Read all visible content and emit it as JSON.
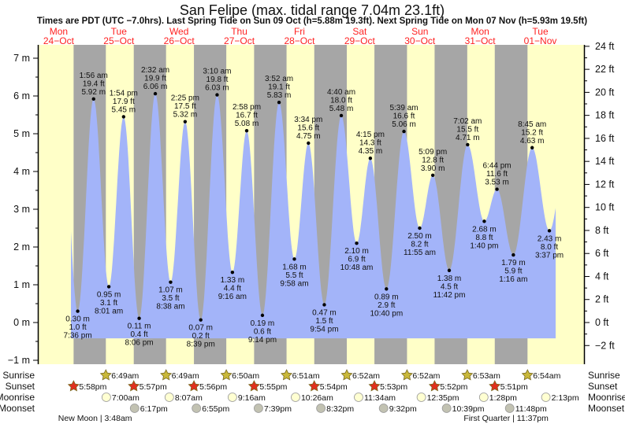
{
  "title": "San Felipe (max. tidal range 7.04m 23.1ft)",
  "subtitle": "Times are PDT (UTC −7.0hrs). Last Spring Tide on Sun 09 Oct (h=5.88m 19.3ft). Next Spring Tide on Mon 07 Nov (h=5.93m 19.5ft)",
  "colors": {
    "day": "#ffffc8",
    "night": "#a6a6a6",
    "water": "#a3b4f9",
    "day_label": "#ff2a2a",
    "sunrise": "#c9b83a",
    "sunset": "#e0301e",
    "moonrise": "#ffffd2",
    "moonset": "#c2c2b2"
  },
  "chart_data": {
    "type": "area",
    "title": "San Felipe (max. tidal range 7.04m 23.1ft)",
    "days": [
      {
        "dow": "Mon",
        "date": "24−Oct"
      },
      {
        "dow": "Tue",
        "date": "25−Oct"
      },
      {
        "dow": "Wed",
        "date": "26−Oct"
      },
      {
        "dow": "Thu",
        "date": "27−Oct"
      },
      {
        "dow": "Fri",
        "date": "28−Oct"
      },
      {
        "dow": "Sat",
        "date": "29−Oct"
      },
      {
        "dow": "Sun",
        "date": "30−Oct"
      },
      {
        "dow": "Mon",
        "date": "31−Oct"
      },
      {
        "dow": "Tue",
        "date": "01−Nov"
      }
    ],
    "y_left": {
      "unit": "m",
      "ticks": [
        "7 m",
        "6 m",
        "5 m",
        "4 m",
        "3 m",
        "2 m",
        "1 m",
        "0 m",
        "−1 m"
      ],
      "values": [
        7,
        6,
        5,
        4,
        3,
        2,
        1,
        0,
        -1
      ]
    },
    "y_right": {
      "unit": "ft",
      "ticks": [
        "24 ft",
        "22 ft",
        "20 ft",
        "18 ft",
        "16 ft",
        "14 ft",
        "12 ft",
        "10 ft",
        "8 ft",
        "6 ft",
        "4 ft",
        "2 ft",
        "0 ft",
        "−2 ft"
      ],
      "values": [
        24,
        22,
        20,
        18,
        16,
        14,
        12,
        10,
        8,
        6,
        4,
        2,
        0,
        -2
      ]
    },
    "tides": [
      {
        "day": 0,
        "type": "low",
        "time": "7:36 pm",
        "m": "0.30 m",
        "ft": "1.0 ft",
        "h": 0.3
      },
      {
        "day": 1,
        "type": "high",
        "time": "1:56 am",
        "m": "5.92 m",
        "ft": "19.4 ft",
        "h": 5.92
      },
      {
        "day": 1,
        "type": "low",
        "time": "8:01 am",
        "m": "0.95 m",
        "ft": "3.1 ft",
        "h": 0.95
      },
      {
        "day": 1,
        "type": "high",
        "time": "1:54 pm",
        "m": "5.45 m",
        "ft": "17.9 ft",
        "h": 5.45
      },
      {
        "day": 1,
        "type": "low",
        "time": "8:06 pm",
        "m": "0.11 m",
        "ft": "0.4 ft",
        "h": 0.11
      },
      {
        "day": 2,
        "type": "high",
        "time": "2:32 am",
        "m": "6.06 m",
        "ft": "19.9 ft",
        "h": 6.06
      },
      {
        "day": 2,
        "type": "low",
        "time": "8:38 am",
        "m": "1.07 m",
        "ft": "3.5 ft",
        "h": 1.07
      },
      {
        "day": 2,
        "type": "high",
        "time": "2:25 pm",
        "m": "5.32 m",
        "ft": "17.5 ft",
        "h": 5.32
      },
      {
        "day": 2,
        "type": "low",
        "time": "8:39 pm",
        "m": "0.07 m",
        "ft": "0.2 ft",
        "h": 0.07
      },
      {
        "day": 3,
        "type": "high",
        "time": "3:10 am",
        "m": "6.03 m",
        "ft": "19.8 ft",
        "h": 6.03
      },
      {
        "day": 3,
        "type": "low",
        "time": "9:16 am",
        "m": "1.33 m",
        "ft": "4.4 ft",
        "h": 1.33
      },
      {
        "day": 3,
        "type": "high",
        "time": "2:58 pm",
        "m": "5.08 m",
        "ft": "16.7 ft",
        "h": 5.08
      },
      {
        "day": 3,
        "type": "low",
        "time": "9:14 pm",
        "m": "0.19 m",
        "ft": "0.6 ft",
        "h": 0.19
      },
      {
        "day": 4,
        "type": "high",
        "time": "3:52 am",
        "m": "5.83 m",
        "ft": "19.1 ft",
        "h": 5.83
      },
      {
        "day": 4,
        "type": "low",
        "time": "9:58 am",
        "m": "1.68 m",
        "ft": "5.5 ft",
        "h": 1.68
      },
      {
        "day": 4,
        "type": "high",
        "time": "3:34 pm",
        "m": "4.75 m",
        "ft": "15.6 ft",
        "h": 4.75
      },
      {
        "day": 4,
        "type": "low",
        "time": "9:54 pm",
        "m": "0.47 m",
        "ft": "1.5 ft",
        "h": 0.47
      },
      {
        "day": 5,
        "type": "high",
        "time": "4:40 am",
        "m": "5.48 m",
        "ft": "18.0 ft",
        "h": 5.48
      },
      {
        "day": 5,
        "type": "low",
        "time": "10:48 am",
        "m": "2.10 m",
        "ft": "6.9 ft",
        "h": 2.1
      },
      {
        "day": 5,
        "type": "high",
        "time": "4:15 pm",
        "m": "4.35 m",
        "ft": "14.3 ft",
        "h": 4.35
      },
      {
        "day": 5,
        "type": "low",
        "time": "10:40 pm",
        "m": "0.89 m",
        "ft": "2.9 ft",
        "h": 0.89
      },
      {
        "day": 6,
        "type": "high",
        "time": "5:39 am",
        "m": "5.06 m",
        "ft": "16.6 ft",
        "h": 5.06
      },
      {
        "day": 6,
        "type": "low",
        "time": "11:55 am",
        "m": "2.50 m",
        "ft": "8.2 ft",
        "h": 2.5
      },
      {
        "day": 6,
        "type": "high",
        "time": "5:09 pm",
        "m": "3.90 m",
        "ft": "12.8 ft",
        "h": 3.9
      },
      {
        "day": 6,
        "type": "low",
        "time": "11:42 pm",
        "m": "1.38 m",
        "ft": "4.5 ft",
        "h": 1.38
      },
      {
        "day": 7,
        "type": "high",
        "time": "7:02 am",
        "m": "4.71 m",
        "ft": "15.5 ft",
        "h": 4.71
      },
      {
        "day": 7,
        "type": "low",
        "time": "1:40 pm",
        "m": "2.68 m",
        "ft": "8.8 ft",
        "h": 2.68
      },
      {
        "day": 7,
        "type": "high",
        "time": "6:44 pm",
        "m": "3.53 m",
        "ft": "11.6 ft",
        "h": 3.53
      },
      {
        "day": 8,
        "type": "low",
        "time": "1:16 am",
        "m": "1.79 m",
        "ft": "5.9 ft",
        "h": 1.79
      },
      {
        "day": 8,
        "type": "high",
        "time": "8:45 am",
        "m": "4.63 m",
        "ft": "15.2 ft",
        "h": 4.63
      },
      {
        "day": 8,
        "type": "low",
        "time": "3:37 pm",
        "m": "2.43 m",
        "ft": "8.0 ft",
        "h": 2.43
      }
    ]
  },
  "rows": {
    "sunrise": {
      "label": "Sunrise",
      "events": [
        {
          "day": 1,
          "time": "6:49am"
        },
        {
          "day": 2,
          "time": "6:49am"
        },
        {
          "day": 3,
          "time": "6:50am"
        },
        {
          "day": 4,
          "time": "6:51am"
        },
        {
          "day": 5,
          "time": "6:52am"
        },
        {
          "day": 6,
          "time": "6:52am"
        },
        {
          "day": 7,
          "time": "6:53am"
        },
        {
          "day": 8,
          "time": "6:54am"
        }
      ]
    },
    "sunset": {
      "label": "Sunset",
      "events": [
        {
          "day": 0,
          "time": "5:58pm"
        },
        {
          "day": 1,
          "time": "5:57pm"
        },
        {
          "day": 2,
          "time": "5:56pm"
        },
        {
          "day": 3,
          "time": "5:55pm"
        },
        {
          "day": 4,
          "time": "5:54pm"
        },
        {
          "day": 5,
          "time": "5:53pm"
        },
        {
          "day": 6,
          "time": "5:52pm"
        },
        {
          "day": 7,
          "time": "5:51pm"
        }
      ]
    },
    "moonrise": {
      "label": "Moonrise",
      "events": [
        {
          "day": 1,
          "time": "7:00am"
        },
        {
          "day": 2,
          "time": "8:07am"
        },
        {
          "day": 3,
          "time": "9:16am"
        },
        {
          "day": 4,
          "time": "10:26am"
        },
        {
          "day": 5,
          "time": "11:34am"
        },
        {
          "day": 6,
          "time": "12:35pm"
        },
        {
          "day": 7,
          "time": "1:28pm"
        },
        {
          "day": 8,
          "time": "2:13pm"
        }
      ]
    },
    "moonset": {
      "label": "Moonset",
      "events": [
        {
          "day": 1,
          "time": "6:17pm"
        },
        {
          "day": 2,
          "time": "6:55pm"
        },
        {
          "day": 3,
          "time": "7:39pm"
        },
        {
          "day": 4,
          "time": "8:32pm"
        },
        {
          "day": 5,
          "time": "9:32pm"
        },
        {
          "day": 6,
          "time": "10:39pm"
        },
        {
          "day": 7,
          "time": "11:48pm"
        }
      ]
    }
  },
  "moon_phases": [
    {
      "day": 1,
      "time": "3:48am",
      "text": "New Moon | 3:48am"
    },
    {
      "day": 7,
      "time": "11:37pm",
      "text": "First Quarter | 11:37pm"
    }
  ]
}
